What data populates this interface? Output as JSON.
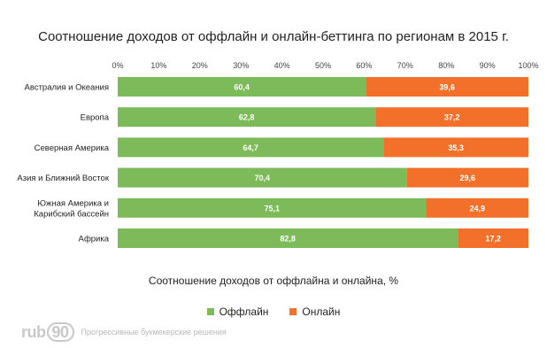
{
  "chart_data": {
    "type": "bar",
    "orientation": "horizontal",
    "stacked": true,
    "title": "Соотношение доходов от оффлайн и онлайн-беттинга по регионам в 2015 г.",
    "xlabel": "Соотношение доходов от оффлайна и онлайна, %",
    "categories": [
      "Австралия и Океания",
      "Европа",
      "Северная Америка",
      "Азия и Ближний Восток",
      "Южная Америка и Карибский бассейн",
      "Африка"
    ],
    "category_lines": [
      [
        "Австралия и Океания"
      ],
      [
        "Европа"
      ],
      [
        "Северная Америка"
      ],
      [
        "Азия и Ближний Восток"
      ],
      [
        "Южная Америка и",
        "Карибский бассейн"
      ],
      [
        "Африка"
      ]
    ],
    "series": [
      {
        "name": "Оффлайн",
        "color": "#7dbb5a",
        "values": [
          60.4,
          62.8,
          64.7,
          70.4,
          75.1,
          82.8
        ],
        "labels": [
          "60,4",
          "62,8",
          "64,7",
          "70,4",
          "75,1",
          "82,8"
        ]
      },
      {
        "name": "Онлайн",
        "color": "#f2702a",
        "values": [
          39.6,
          37.2,
          35.3,
          29.6,
          24.9,
          17.2
        ],
        "labels": [
          "39,6",
          "37,2",
          "35,3",
          "29,6",
          "24,9",
          "17,2"
        ]
      }
    ],
    "xlim": [
      0,
      100
    ],
    "xticks": [
      "0%",
      "10%",
      "20%",
      "30%",
      "40%",
      "50%",
      "60%",
      "70%",
      "80%",
      "90%",
      "100%"
    ],
    "grid": false,
    "legend_position": "bottom"
  },
  "brand": {
    "logo_text": "rub",
    "logo_number": "90",
    "tagline": "Прогрессивные букмекерские решения"
  }
}
